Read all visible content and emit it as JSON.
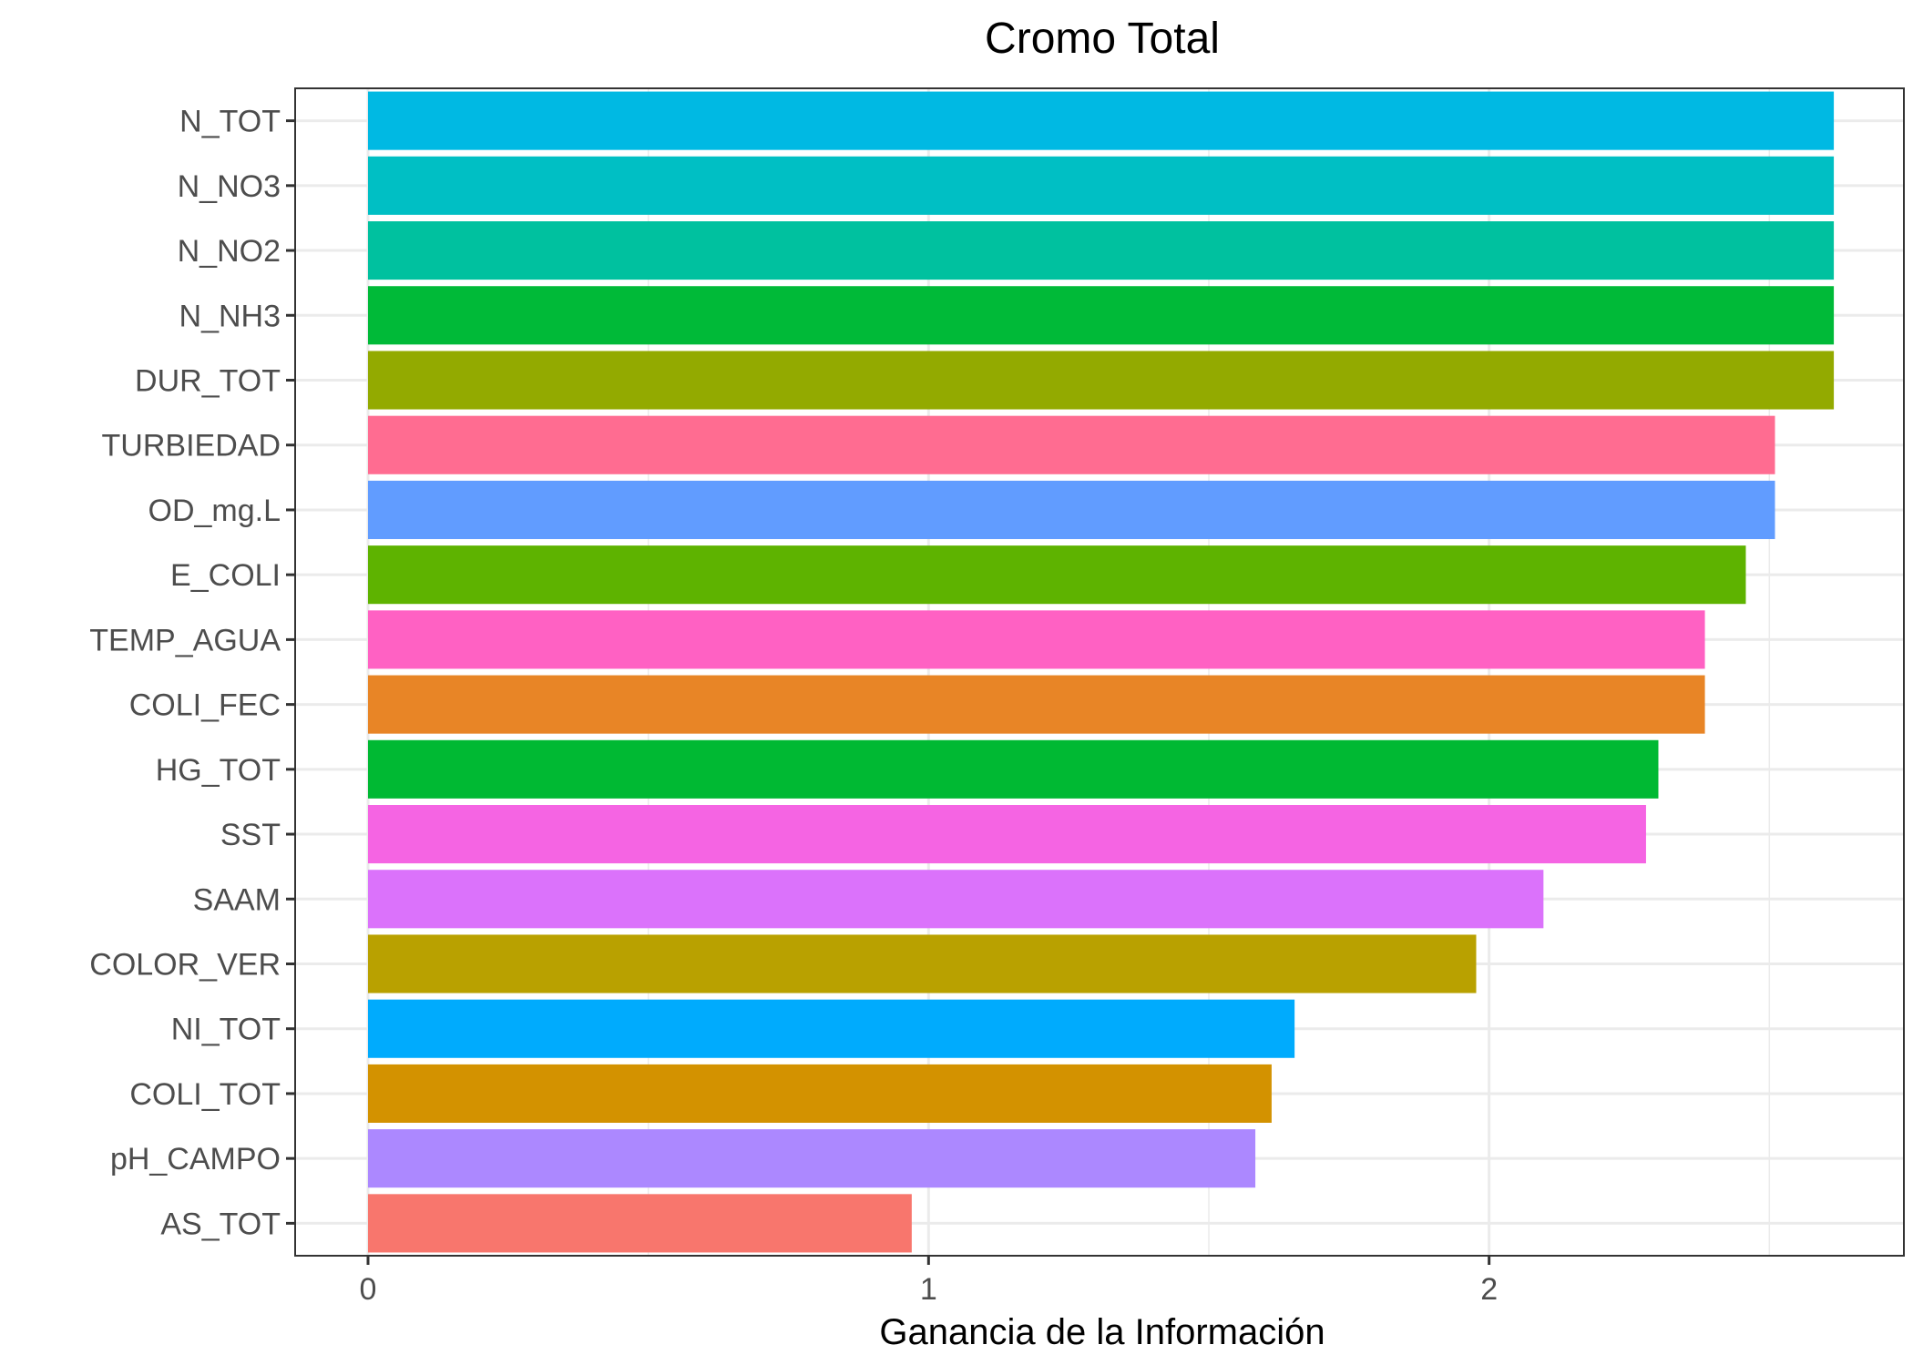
{
  "chart_data": {
    "type": "bar",
    "orientation": "horizontal",
    "title": "Cromo Total",
    "xlabel": "Ganancia de la Información",
    "ylabel": "",
    "xlim": [
      -0.13,
      2.74
    ],
    "xticks": [
      0,
      1,
      2
    ],
    "grid": true,
    "legend": "none",
    "categories": [
      "N_TOT",
      "N_NO3",
      "N_NO2",
      "N_NH3",
      "DUR_TOT",
      "TURBIEDAD",
      "OD_mg.L",
      "E_COLI",
      "TEMP_AGUA",
      "COLI_FEC",
      "HG_TOT",
      "SST",
      "SAAM",
      "COLOR_VER",
      "NI_TOT",
      "COLI_TOT",
      "pH_CAMPO",
      "AS_TOT"
    ],
    "values": [
      2.615,
      2.615,
      2.615,
      2.615,
      2.615,
      2.51,
      2.51,
      2.458,
      2.385,
      2.385,
      2.302,
      2.28,
      2.097,
      1.977,
      1.653,
      1.612,
      1.583,
      0.97
    ],
    "colors": [
      "#00B9E3",
      "#00BFC4",
      "#00C19F",
      "#00BA38",
      "#93AA00",
      "#FF6C91",
      "#619CFF",
      "#5EB300",
      "#FF61C3",
      "#E88526",
      "#00B933",
      "#F564E3",
      "#DB72FB",
      "#B9A100",
      "#00ABFD",
      "#D39200",
      "#AC88FF",
      "#F8766D"
    ]
  }
}
